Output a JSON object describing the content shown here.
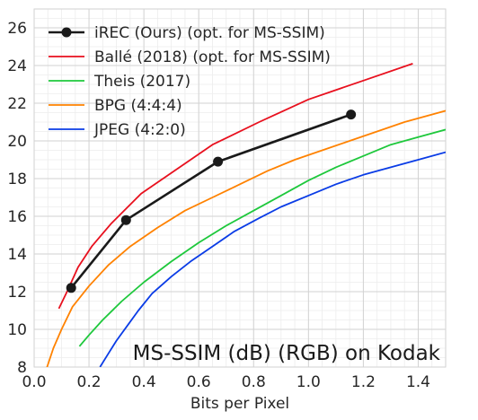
{
  "chart_data": {
    "type": "line",
    "title": "",
    "annotation": "MS-SSIM (dB) (RGB) on Kodak",
    "xlabel": "Bits per Pixel",
    "ylabel": "",
    "xlim": [
      0.0,
      1.5
    ],
    "ylim": [
      8,
      27
    ],
    "x_ticks": [
      0.0,
      0.2,
      0.4,
      0.6,
      0.8,
      1.0,
      1.2,
      1.4
    ],
    "x_tick_labels": [
      "0.0",
      "0.2",
      "0.4",
      "0.6",
      "0.8",
      "1.0",
      "1.2",
      "1.4"
    ],
    "y_ticks": [
      8,
      10,
      12,
      14,
      16,
      18,
      20,
      22,
      24,
      26
    ],
    "y_tick_labels": [
      "8",
      "10",
      "12",
      "14",
      "16",
      "18",
      "20",
      "22",
      "24",
      "26"
    ],
    "grid": true,
    "legend_position": "top-left",
    "series": [
      {
        "name": "iREC (Ours) (opt. for MS-SSIM)",
        "color": "#1a1a1a",
        "markers": true,
        "x": [
          0.135,
          0.335,
          0.67,
          1.155
        ],
        "y": [
          12.2,
          15.8,
          18.9,
          21.4
        ]
      },
      {
        "name": "Ballé (2018) (opt. for MS-SSIM)",
        "color": "#e8101e",
        "markers": false,
        "x": [
          0.09,
          0.12,
          0.16,
          0.21,
          0.28,
          0.39,
          0.52,
          0.65,
          0.82,
          1.0,
          1.2,
          1.38
        ],
        "y": [
          11.1,
          12.0,
          13.3,
          14.4,
          15.6,
          17.2,
          18.5,
          19.8,
          21.0,
          22.2,
          23.2,
          24.1
        ]
      },
      {
        "name": "Theis (2017)",
        "color": "#1ec83c",
        "markers": false,
        "x": [
          0.165,
          0.2,
          0.25,
          0.32,
          0.4,
          0.5,
          0.6,
          0.7,
          0.8,
          0.9,
          1.0,
          1.1,
          1.2,
          1.3,
          1.4,
          1.5
        ],
        "y": [
          9.1,
          9.7,
          10.5,
          11.5,
          12.5,
          13.6,
          14.6,
          15.5,
          16.3,
          17.1,
          17.9,
          18.6,
          19.2,
          19.8,
          20.2,
          20.6
        ]
      },
      {
        "name": "BPG (4:4:4)",
        "color": "#ff8200",
        "markers": false,
        "x": [
          0.045,
          0.07,
          0.1,
          0.14,
          0.2,
          0.27,
          0.35,
          0.45,
          0.55,
          0.65,
          0.75,
          0.85,
          0.95,
          1.05,
          1.15,
          1.25,
          1.35,
          1.45,
          1.5
        ],
        "y": [
          7.9,
          9.0,
          10.0,
          11.2,
          12.3,
          13.4,
          14.4,
          15.4,
          16.3,
          17.0,
          17.7,
          18.4,
          19.0,
          19.5,
          20.0,
          20.5,
          21.0,
          21.4,
          21.6
        ]
      },
      {
        "name": "JPEG (4:2:0)",
        "color": "#0a3ce6",
        "markers": false,
        "x": [
          0.24,
          0.27,
          0.3,
          0.34,
          0.38,
          0.43,
          0.5,
          0.57,
          0.65,
          0.73,
          0.82,
          0.9,
          1.0,
          1.1,
          1.2,
          1.3,
          1.4,
          1.5
        ],
        "y": [
          8.0,
          8.7,
          9.4,
          10.2,
          11.0,
          11.9,
          12.8,
          13.6,
          14.4,
          15.2,
          15.9,
          16.5,
          17.1,
          17.7,
          18.2,
          18.6,
          19.0,
          19.4
        ]
      }
    ]
  }
}
